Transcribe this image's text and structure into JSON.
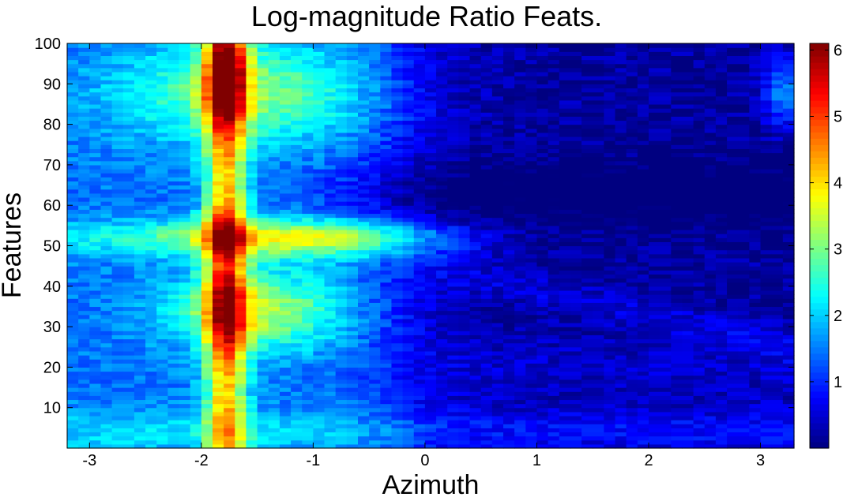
{
  "chart_data": {
    "type": "heatmap",
    "title": "Log-magnitude Ratio Feats.",
    "xlabel": "Azimuth",
    "ylabel": "Features",
    "xlim": [
      -3.2,
      3.3
    ],
    "ylim": [
      0,
      100
    ],
    "x_ticks": [
      -3,
      -2,
      -1,
      0,
      1,
      2,
      3
    ],
    "x_tick_labels": [
      "-3",
      "-2",
      "-1",
      "0",
      "1",
      "2",
      "3"
    ],
    "y_ticks": [
      10,
      20,
      30,
      40,
      50,
      60,
      70,
      80,
      90,
      100
    ],
    "y_tick_labels": [
      "10",
      "20",
      "30",
      "40",
      "50",
      "60",
      "70",
      "80",
      "90",
      "100"
    ],
    "colorbar": {
      "colormap": "jet",
      "range": [
        0,
        6.1
      ],
      "ticks": [
        1,
        2,
        3,
        4,
        5,
        6
      ],
      "tick_labels": [
        "1",
        "2",
        "3",
        "4",
        "5",
        "6"
      ]
    },
    "grid": false,
    "values_note_columns": 65,
    "values_note_rows": 100
  }
}
